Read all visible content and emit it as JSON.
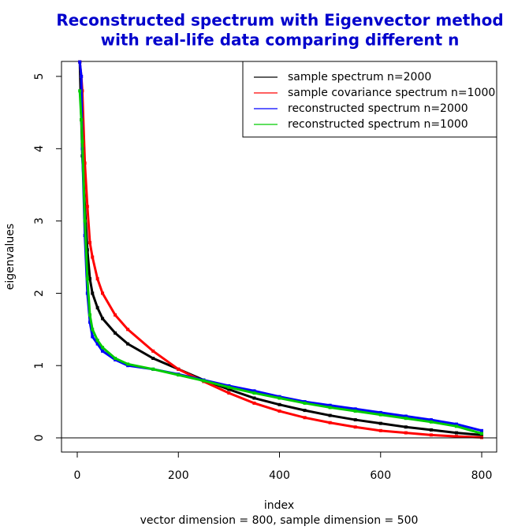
{
  "chart_data": {
    "type": "scatter",
    "title": [
      "Reconstructed spectrum  with Eigenvector method",
      "with real-life data comparing different n"
    ],
    "x_label": "index",
    "subtitle": "vector dimension = 800, sample dimension = 500",
    "y_label": "eigenvalues",
    "x": [
      5,
      8,
      10,
      15,
      20,
      25,
      30,
      40,
      50,
      75,
      100,
      150,
      200,
      250,
      300,
      350,
      400,
      450,
      500,
      550,
      600,
      650,
      700,
      750,
      800
    ],
    "series": [
      {
        "name": "sample spectrum n=2000",
        "color": "#000000",
        "values": [
          5.2,
          4.4,
          3.9,
          3.2,
          2.6,
          2.2,
          2.0,
          1.8,
          1.65,
          1.45,
          1.3,
          1.1,
          0.95,
          0.8,
          0.67,
          0.55,
          0.46,
          0.38,
          0.31,
          0.25,
          0.2,
          0.15,
          0.11,
          0.07,
          0.04
        ]
      },
      {
        "name": "sample covariance spectrum n=1000",
        "color": "#ff0000",
        "values": [
          5.2,
          5.0,
          4.8,
          3.8,
          3.2,
          2.7,
          2.5,
          2.2,
          2.0,
          1.7,
          1.5,
          1.2,
          0.95,
          0.78,
          0.62,
          0.48,
          0.37,
          0.28,
          0.21,
          0.15,
          0.1,
          0.07,
          0.04,
          0.02,
          0.005
        ]
      },
      {
        "name": "reconstructed spectrum n=2000",
        "color": "#0000ff",
        "values": [
          5.2,
          5.0,
          4.0,
          2.8,
          2.0,
          1.6,
          1.4,
          1.3,
          1.2,
          1.08,
          1.0,
          0.95,
          0.88,
          0.8,
          0.72,
          0.65,
          0.57,
          0.5,
          0.45,
          0.4,
          0.35,
          0.3,
          0.25,
          0.19,
          0.1
        ]
      },
      {
        "name": "reconstructed spectrum n=1000",
        "color": "#00cc00",
        "values": [
          4.8,
          4.4,
          4.1,
          3.0,
          2.2,
          1.7,
          1.5,
          1.35,
          1.25,
          1.1,
          1.02,
          0.95,
          0.87,
          0.79,
          0.7,
          0.62,
          0.55,
          0.48,
          0.42,
          0.37,
          0.32,
          0.27,
          0.22,
          0.16,
          0.06
        ]
      }
    ],
    "hline": 0,
    "xlim": [
      -31.2,
      829.6
    ],
    "xticks": [
      0,
      200,
      400,
      600,
      800
    ],
    "ylim": [
      -0.196,
      5.207
    ],
    "yticks": [
      0,
      1,
      2,
      3,
      4,
      5
    ],
    "legend": "topright"
  }
}
